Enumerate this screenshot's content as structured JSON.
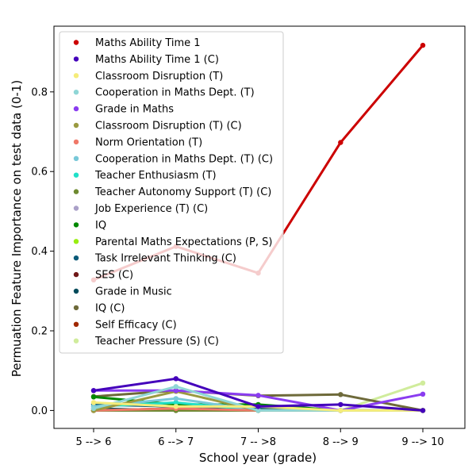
{
  "chart_data": {
    "type": "line",
    "title": "",
    "xlabel": "School year (grade)",
    "ylabel": "Permuation Feature Importance on test data (0-1)",
    "categories": [
      "5 --> 6",
      "6 --> 7",
      "7 -- >8",
      "8 --> 9",
      "9 --> 10"
    ],
    "ylim": [
      -0.045,
      0.965
    ],
    "yticks": [
      0.0,
      0.2,
      0.4,
      0.6,
      0.8
    ],
    "ytick_labels": [
      "0.0",
      "0.2",
      "0.4",
      "0.6",
      "0.8"
    ],
    "grid": false,
    "legend_position": "upper-left",
    "series": [
      {
        "name": "Maths Ability Time 1",
        "color": "#cc0000",
        "values": [
          0.328,
          0.412,
          0.345,
          0.673,
          0.917
        ]
      },
      {
        "name": "Maths Ability Time 1 (C)",
        "color": "#4400bb",
        "values": [
          0.05,
          0.08,
          0.01,
          0.015,
          0.0
        ]
      },
      {
        "name": "Classroom Disruption (T)",
        "color": "#f5ec7a",
        "values": [
          0.02,
          0.01,
          0.01,
          0.0,
          0.0
        ]
      },
      {
        "name": "Cooperation in Maths Dept. (T)",
        "color": "#8fd6d6",
        "values": [
          0.005,
          0.06,
          0.0,
          0.0,
          0.0
        ]
      },
      {
        "name": "Grade in Maths",
        "color": "#8a3cf0",
        "values": [
          0.05,
          0.05,
          0.038,
          0.0,
          0.041
        ]
      },
      {
        "name": "Classroom Disruption (T) (C)",
        "color": "#9a9a40",
        "values": [
          0.0,
          0.048,
          0.0,
          0.0,
          0.0
        ]
      },
      {
        "name": "Norm Orientation (T)",
        "color": "#f07868",
        "values": [
          0.0,
          0.005,
          0.0,
          0.0,
          0.0
        ]
      },
      {
        "name": "Cooperation in Maths Dept. (T) (C)",
        "color": "#78c8d8",
        "values": [
          0.01,
          0.03,
          0.0,
          0.0,
          0.0
        ]
      },
      {
        "name": "Teacher Enthusiasm (T)",
        "color": "#20e0c8",
        "values": [
          0.01,
          0.02,
          0.0,
          0.0,
          0.0
        ]
      },
      {
        "name": "Teacher Autonomy Support (T) (C)",
        "color": "#6e8a30",
        "values": [
          0.0,
          0.0,
          0.0,
          0.0,
          0.0
        ]
      },
      {
        "name": "Job Experience (T) (C)",
        "color": "#aaa0c8",
        "values": [
          0.0,
          0.0,
          0.0,
          0.0,
          0.0
        ]
      },
      {
        "name": "IQ",
        "color": "#008800",
        "values": [
          0.034,
          0.015,
          0.015,
          0.0,
          0.0
        ]
      },
      {
        "name": "Parental Maths Expectations (P, S)",
        "color": "#98ee10",
        "values": [
          0.0,
          0.0,
          0.0,
          0.0,
          0.0
        ]
      },
      {
        "name": "Task Irrelevant Thinking (C)",
        "color": "#0a5a78",
        "values": [
          0.015,
          0.01,
          0.005,
          0.0,
          0.0
        ]
      },
      {
        "name": "SES (C)",
        "color": "#701818",
        "values": [
          0.0,
          0.0,
          0.005,
          0.0,
          0.0
        ]
      },
      {
        "name": "Grade in Music",
        "color": "#004a5a",
        "values": [
          0.005,
          0.0,
          0.0,
          0.0,
          0.0
        ]
      },
      {
        "name": "IQ (C)",
        "color": "#6e6a3a",
        "values": [
          0.035,
          0.05,
          0.037,
          0.04,
          0.0
        ]
      },
      {
        "name": "Self Efficacy (C)",
        "color": "#a02800",
        "values": [
          0.0,
          0.005,
          0.01,
          0.0,
          0.0
        ]
      },
      {
        "name": "Teacher Pressure (S) (C)",
        "color": "#d0ec9c",
        "values": [
          0.0,
          0.0,
          0.0,
          0.0,
          0.069
        ]
      }
    ]
  }
}
